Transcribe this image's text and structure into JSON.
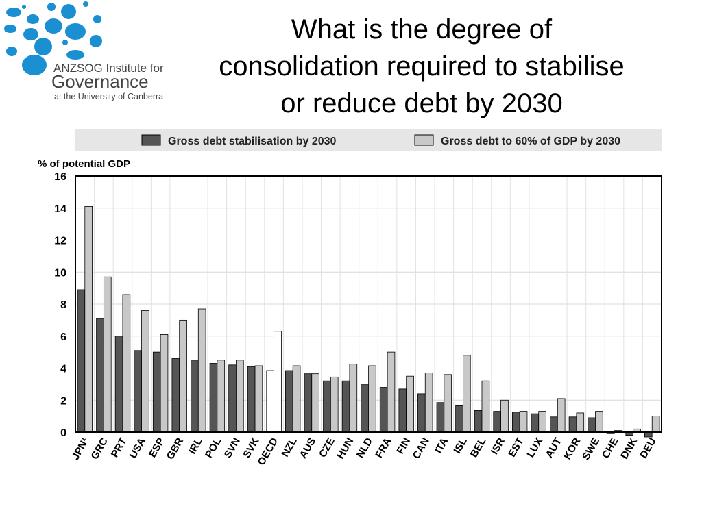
{
  "logo": {
    "line1": "ANZSOG Institute for",
    "line2": "Governance",
    "line3": "at the University of Canberra"
  },
  "title": {
    "line1": "What is the degree of",
    "line2": "consolidation required to stabilise",
    "line3": "or reduce debt by 2030"
  },
  "colors": {
    "series1": "#555555",
    "series2": "#c8c8c8",
    "highlight": "#ffffff",
    "legend_band": "#e6e6e6",
    "logo_dots": "#1a90d2"
  },
  "chart_data": {
    "type": "bar",
    "ylabel": "% of potential GDP",
    "ylim": [
      0,
      16
    ],
    "yticks": [
      0,
      2,
      4,
      6,
      8,
      10,
      12,
      14,
      16
    ],
    "grid": true,
    "legend_position": "top",
    "highlight_category": "OECD",
    "categories": [
      "JPN",
      "GRC",
      "PRT",
      "USA",
      "ESP",
      "GBR",
      "IRL",
      "POL",
      "SVN",
      "SVK",
      "OECD",
      "NZL",
      "AUS",
      "CZE",
      "HUN",
      "NLD",
      "FRA",
      "FIN",
      "CAN",
      "ITA",
      "ISL",
      "BEL",
      "ISR",
      "EST",
      "LUX",
      "AUT",
      "KOR",
      "SWE",
      "CHE",
      "DNK",
      "DEU"
    ],
    "category_labels": [
      "JPN¹",
      "GRC",
      "PRT",
      "USA",
      "ESP",
      "GBR",
      "IRL",
      "POL",
      "SVN",
      "SVK",
      "OECD",
      "NZL",
      "AUS",
      "CZE",
      "HUN",
      "NLD",
      "FRA",
      "FIN",
      "CAN",
      "ITA",
      "ISL",
      "BEL",
      "ISR",
      "EST",
      "LUX",
      "AUT",
      "KOR",
      "SWE",
      "CHE",
      "DNK",
      "DEU"
    ],
    "series": [
      {
        "name": "Gross debt stabilisation by 2030",
        "values": [
          8.9,
          7.1,
          6.0,
          5.1,
          5.0,
          4.6,
          4.5,
          4.3,
          4.2,
          4.1,
          3.85,
          3.85,
          3.65,
          3.2,
          3.2,
          3.0,
          2.8,
          2.7,
          2.4,
          1.85,
          1.65,
          1.35,
          1.3,
          1.25,
          1.15,
          0.95,
          0.95,
          0.9,
          -0.1,
          -0.2,
          -0.3
        ]
      },
      {
        "name": "Gross debt to 60% of GDP by 2030",
        "values": [
          14.1,
          9.7,
          8.6,
          7.6,
          6.1,
          7.0,
          7.7,
          4.5,
          4.5,
          4.15,
          6.3,
          4.15,
          3.65,
          3.45,
          4.25,
          4.15,
          5.0,
          3.5,
          3.7,
          3.6,
          4.8,
          3.2,
          2.0,
          1.3,
          1.3,
          2.1,
          1.2,
          1.3,
          0.1,
          0.2,
          1.0
        ]
      }
    ]
  }
}
